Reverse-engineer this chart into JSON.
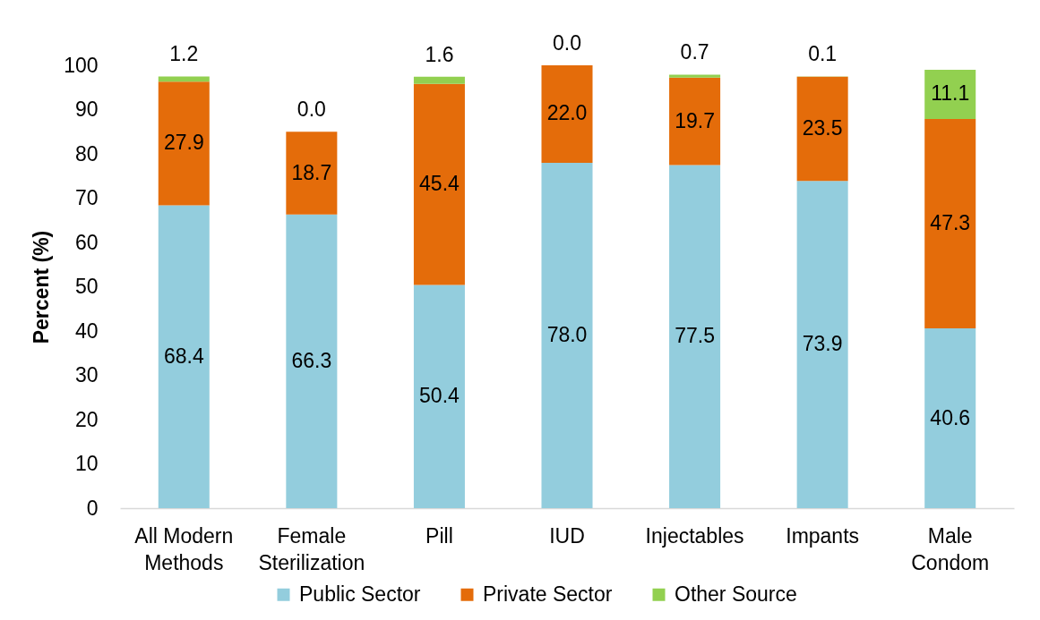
{
  "chart_data": {
    "type": "bar",
    "stacked": true,
    "ylabel": "Percent (%)",
    "categories": [
      "All Modern Methods",
      "Female Sterilization",
      "Pill",
      "IUD",
      "Injectables",
      "Impants",
      "Male Condom"
    ],
    "series": [
      {
        "name": "Public Sector",
        "color": "#93cddd",
        "values": [
          68.4,
          66.3,
          50.4,
          78.0,
          77.5,
          73.9,
          40.6
        ],
        "value_labels": [
          "68.4",
          "66.3",
          "50.4",
          "78.0",
          "77.5",
          "73.9",
          "40.6"
        ]
      },
      {
        "name": "Private Sector",
        "color": "#e46c0a",
        "values": [
          27.9,
          18.7,
          45.4,
          22.0,
          19.7,
          23.5,
          47.3
        ],
        "value_labels": [
          "27.9",
          "18.7",
          "45.4",
          "22.0",
          "19.7",
          "23.5",
          "47.3"
        ]
      },
      {
        "name": "Other Source",
        "color": "#92d050",
        "values": [
          1.2,
          0.0,
          1.6,
          0.0,
          0.7,
          0.1,
          11.1
        ],
        "value_labels": [
          "1.2",
          "0.0",
          "1.6",
          "0.0",
          "0.7",
          "0.1",
          "11.1"
        ]
      }
    ],
    "ylim": [
      0,
      100
    ],
    "yticks": [
      0,
      10,
      20,
      30,
      40,
      50,
      60,
      70,
      80,
      90,
      100
    ],
    "legend": "bottom"
  }
}
